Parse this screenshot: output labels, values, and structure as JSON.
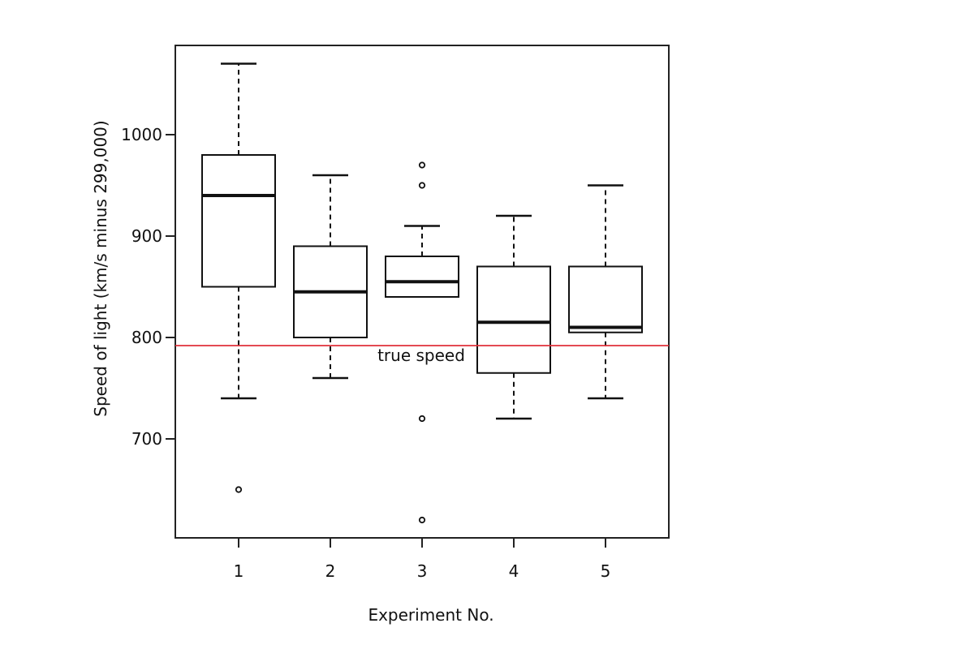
{
  "chart_data": {
    "type": "box",
    "title": "",
    "xlabel": "Experiment No.",
    "ylabel": "Speed of light (km/s minus 299,000)",
    "categories": [
      "1",
      "2",
      "3",
      "4",
      "5"
    ],
    "y_ticks": [
      700,
      800,
      900,
      1000
    ],
    "ylim": [
      600,
      1085
    ],
    "grid": false,
    "legend": null,
    "boxes": [
      {
        "label": "1",
        "whisker_low": 740,
        "q1": 850,
        "median": 940,
        "q3": 980,
        "whisker_high": 1070,
        "outliers": [
          650
        ]
      },
      {
        "label": "2",
        "whisker_low": 760,
        "q1": 800,
        "median": 845,
        "q3": 890,
        "whisker_high": 960,
        "outliers": []
      },
      {
        "label": "3",
        "whisker_low": 840,
        "q1": 840,
        "median": 855,
        "q3": 880,
        "whisker_high": 910,
        "outliers": [
          970,
          950,
          720,
          620
        ]
      },
      {
        "label": "4",
        "whisker_low": 720,
        "q1": 765,
        "median": 815,
        "q3": 870,
        "whisker_high": 920,
        "outliers": []
      },
      {
        "label": "5",
        "whisker_low": 740,
        "q1": 805,
        "median": 810,
        "q3": 870,
        "whisker_high": 950,
        "outliers": []
      }
    ],
    "reference_line": {
      "value": 792,
      "label": "true speed",
      "color": "#e0303a"
    }
  },
  "colors": {
    "axis": "#222222",
    "box": "#111111",
    "reference": "#e0303a"
  }
}
